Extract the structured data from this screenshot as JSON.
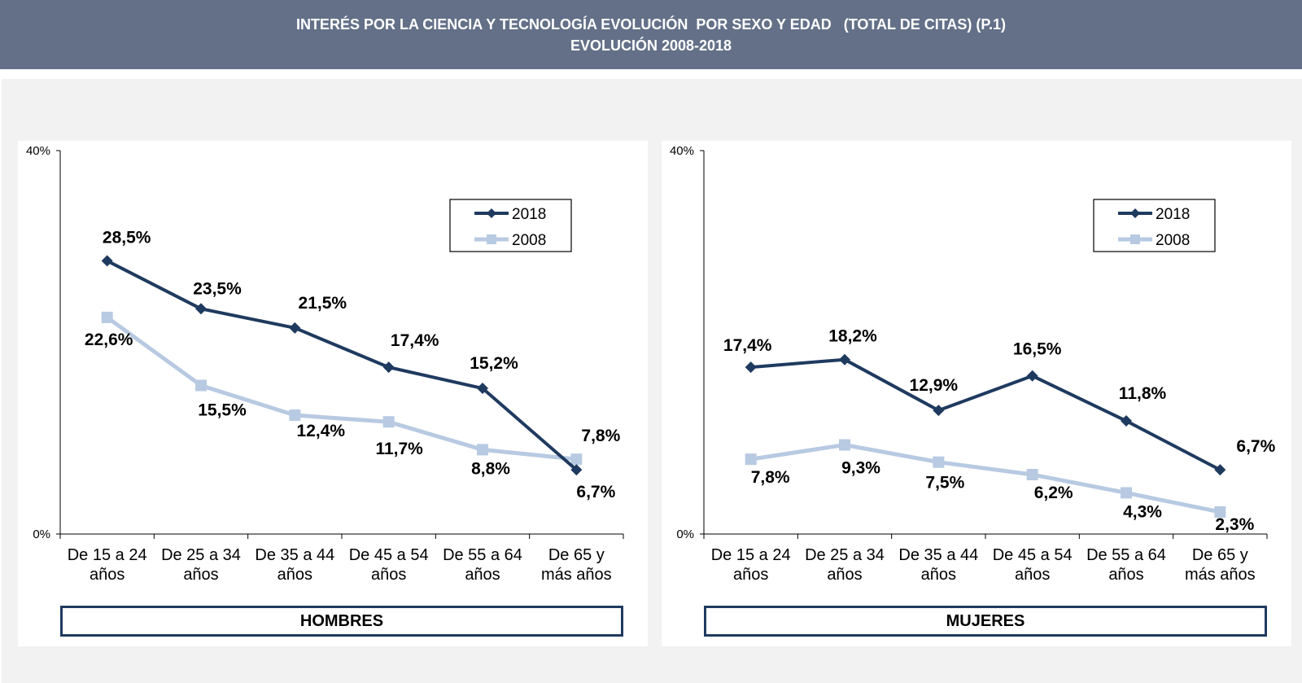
{
  "header": {
    "title_line1": "INTERÉS POR LA CIENCIA Y TECNOLOGÍA EVOLUCIÓN  POR SEXO Y EDAD   (TOTAL DE CITAS) (P.1)",
    "title_line2": "EVOLUCIÓN 2008-2018"
  },
  "colors": {
    "header_bg": "#637088",
    "series_2018": "#1f3a5f",
    "series_2008": "#b8cae2",
    "background": "#f2f2f2"
  },
  "chart_data": [
    {
      "type": "line",
      "group_label": "HOMBRES",
      "categories": [
        [
          "De 15 a 24",
          "años"
        ],
        [
          "De 25 a 34",
          "años"
        ],
        [
          "De 35 a 44",
          "años"
        ],
        [
          "De 45 a 54",
          "años"
        ],
        [
          "De 55 a 64",
          "años"
        ],
        [
          "De 65 y",
          "más años"
        ]
      ],
      "ylim": [
        0,
        40
      ],
      "y_ticks": [
        "0%",
        "40%"
      ],
      "legend_position": "top-right",
      "grid": false,
      "series": [
        {
          "name": "2018",
          "marker": "diamond",
          "values": [
            28.5,
            23.5,
            21.5,
            17.4,
            15.2,
            6.7
          ],
          "labels": [
            "28,5%",
            "23,5%",
            "21,5%",
            "17,4%",
            "15,2%",
            "6,7%"
          ]
        },
        {
          "name": "2008",
          "marker": "square",
          "values": [
            22.6,
            15.5,
            12.4,
            11.7,
            8.8,
            7.8
          ],
          "labels": [
            "22,6%",
            "15,5%",
            "12,4%",
            "11,7%",
            "8,8%",
            "7,8%"
          ]
        }
      ]
    },
    {
      "type": "line",
      "group_label": "MUJERES",
      "categories": [
        [
          "De 15 a 24",
          "años"
        ],
        [
          "De 25 a 34",
          "años"
        ],
        [
          "De 35 a 44",
          "años"
        ],
        [
          "De 45 a 54",
          "años"
        ],
        [
          "De 55 a 64",
          "años"
        ],
        [
          "De 65 y",
          "más años"
        ]
      ],
      "ylim": [
        0,
        40
      ],
      "y_ticks": [
        "0%",
        "40%"
      ],
      "legend_position": "top-right",
      "grid": false,
      "series": [
        {
          "name": "2018",
          "marker": "diamond",
          "values": [
            17.4,
            18.2,
            12.9,
            16.5,
            11.8,
            6.7
          ],
          "labels": [
            "17,4%",
            "18,2%",
            "12,9%",
            "16,5%",
            "11,8%",
            "6,7%"
          ]
        },
        {
          "name": "2008",
          "marker": "square",
          "values": [
            7.8,
            9.3,
            7.5,
            6.2,
            4.3,
            2.3
          ],
          "labels": [
            "7,8%",
            "9,3%",
            "7,5%",
            "6,2%",
            "4,3%",
            "2,3%"
          ]
        }
      ]
    }
  ]
}
